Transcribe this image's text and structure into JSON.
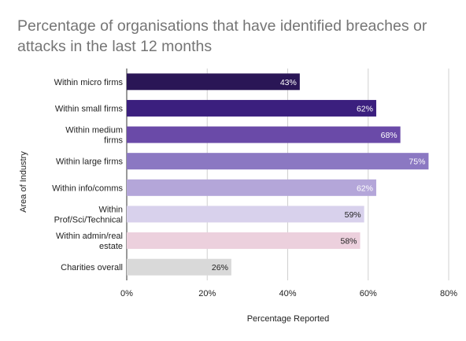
{
  "chart_data": {
    "type": "bar",
    "orientation": "horizontal",
    "title": "Percentage of organisations that have identified breaches or attacks in the last 12 months",
    "xlabel": "Percentage Reported",
    "ylabel": "Area of Industry",
    "xlim": [
      0,
      80
    ],
    "xticks": [
      "0%",
      "20%",
      "40%",
      "60%",
      "80%"
    ],
    "grid": true,
    "categories": [
      "Within micro firms",
      "Within small firms",
      "Within medium firms",
      "Within large firms",
      "Within info/comms",
      "Within Prof/Sci/Technical",
      "Within admin/real estate",
      "Charities overall"
    ],
    "category_lines": [
      [
        "Within micro firms"
      ],
      [
        "Within small firms"
      ],
      [
        "Within medium",
        "firms"
      ],
      [
        "Within large firms"
      ],
      [
        "Within info/comms"
      ],
      [
        "Within",
        "Prof/Sci/Technical"
      ],
      [
        "Within admin/real",
        "estate"
      ],
      [
        "Charities overall"
      ]
    ],
    "values": [
      43,
      62,
      68,
      75,
      62,
      59,
      58,
      26
    ],
    "data_labels": [
      "43%",
      "62%",
      "68%",
      "75%",
      "62%",
      "59%",
      "58%",
      "26%"
    ],
    "colors": [
      "#2a1656",
      "#3b1f7e",
      "#6a4aa8",
      "#8b78c2",
      "#b4a6d9",
      "#d8d1ec",
      "#ecd0dd",
      "#d9d9d9"
    ],
    "label_colors": [
      "#ffffff",
      "#ffffff",
      "#ffffff",
      "#ffffff",
      "#ffffff",
      "#222222",
      "#222222",
      "#222222"
    ]
  }
}
